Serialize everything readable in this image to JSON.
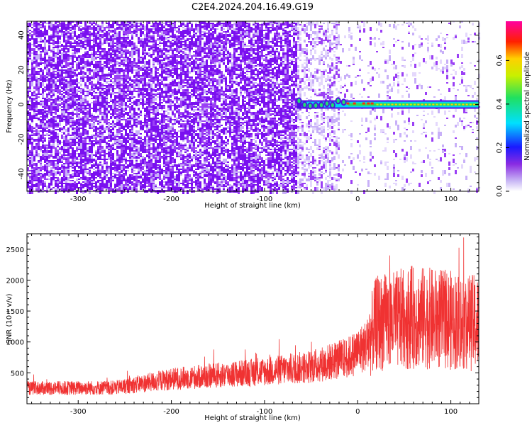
{
  "title": "C2E4.2024.204.16.49.G19",
  "chart_data": [
    {
      "type": "heatmap",
      "xlabel": "Height of straight line (km)",
      "ylabel": "Frequency (Hz)",
      "xlim": [
        -355,
        130
      ],
      "ylim": [
        -50,
        48
      ],
      "xticks": [
        -300,
        -200,
        -100,
        0,
        100
      ],
      "yticks": [
        -40,
        -20,
        0,
        20,
        40
      ],
      "colorbar": {
        "label": "Normalized spectral amplitude",
        "range": [
          0.0,
          0.78
        ],
        "ticks": [
          0.0,
          0.2,
          0.4,
          0.6
        ],
        "colormap": "white-purple-blue-cyan-green-yellow-red-magenta"
      },
      "features": [
        {
          "name": "noise",
          "x_range": [
            -355,
            -65
          ],
          "amplitude": 0.05
        },
        {
          "name": "fading noise",
          "x_range": [
            -65,
            -20
          ],
          "amplitude": 0.03
        },
        {
          "name": "signal line",
          "x_range": [
            -65,
            130
          ],
          "frequency_hz": 0,
          "peak_amplitude": 0.7
        }
      ]
    },
    {
      "type": "line",
      "xlabel": "Height of straight line (km)",
      "ylabel": "SNR (10 * v/v)",
      "xlim": [
        -355,
        130
      ],
      "ylim": [
        0,
        2750
      ],
      "xticks": [
        -300,
        -200,
        -100,
        0,
        100
      ],
      "yticks": [
        500,
        1000,
        1500,
        2000,
        2500
      ],
      "color": "#f03232",
      "series": [
        {
          "values_mean": [
            [
              -355,
              250
            ],
            [
              -260,
              260
            ],
            [
              -200,
              400
            ],
            [
              -100,
              520
            ],
            [
              -50,
              600
            ],
            [
              -10,
              750
            ],
            [
              10,
              950
            ],
            [
              20,
              1300
            ],
            [
              60,
              1400
            ],
            [
              100,
              1350
            ],
            [
              130,
              1300
            ]
          ]
        }
      ]
    }
  ]
}
